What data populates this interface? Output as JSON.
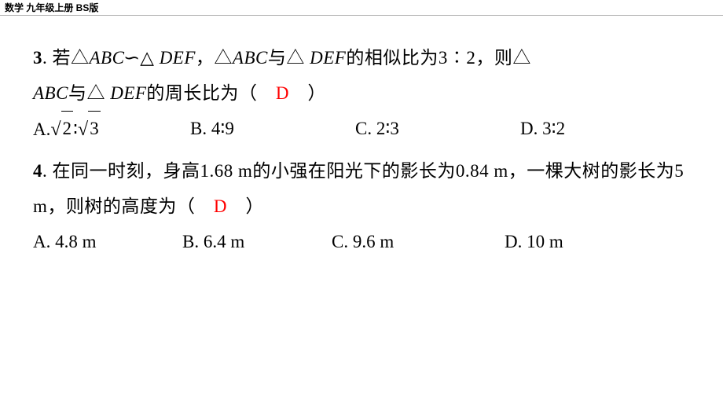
{
  "header": {
    "label": "数学 九年级上册 BS版"
  },
  "q3": {
    "number": "3",
    "line1_prefix": ". 若△",
    "abc": "ABC",
    "similar": "∽",
    "tri2": "△",
    "def": " DEF",
    "mid1": "，△",
    "mid2_abc": "ABC",
    "mid3": "与△",
    "mid4_def": " DEF",
    "mid5": "的相似比为3∶2，则△",
    "line2_abc": "ABC",
    "line2_mid": "与△",
    "line2_def": " DEF",
    "line2_end": "的周长比为（",
    "answer": "D",
    "line2_close": "）",
    "optA_label": "A.",
    "optA_sqrt1": "2",
    "optA_colon": "∶",
    "optA_sqrt2": "3",
    "optB": "B. 4∶9",
    "optC": "C. 2∶3",
    "optD": "D. 3∶2"
  },
  "q4": {
    "number": "4",
    "text1": ". 在同一时刻，身高1.68 m的小强在阳光下的影长为0.84 m，一棵大树的影长为5 m，则树的高度为（",
    "answer": "D",
    "text_close": "）",
    "optA": "A. 4.8 m",
    "optB": "B. 6.4 m",
    "optC": "C. 9.6 m",
    "optD": "D. 10 m"
  },
  "colors": {
    "answer_color": "#ff0000",
    "text_color": "#000000",
    "background": "#ffffff"
  }
}
